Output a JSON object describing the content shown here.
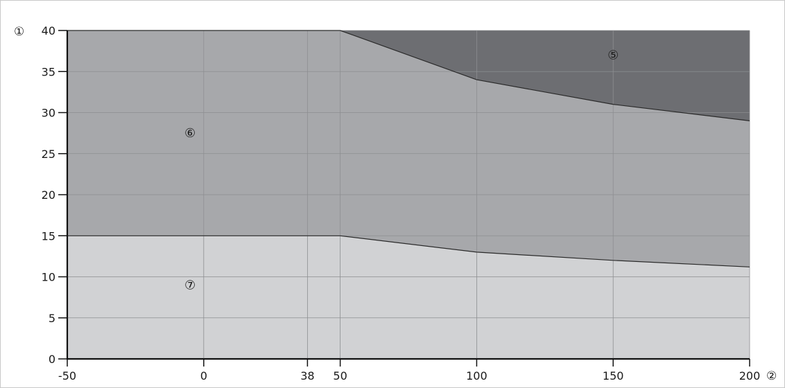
{
  "chart_data": {
    "type": "area",
    "title": "",
    "xlabel": "②",
    "ylabel": "①",
    "xlim": [
      -50,
      200
    ],
    "ylim": [
      0,
      40
    ],
    "x_ticks": [
      -50,
      0,
      38,
      50,
      100,
      150,
      200
    ],
    "y_ticks": [
      0,
      5,
      10,
      15,
      20,
      25,
      30,
      35,
      40
    ],
    "grid": true,
    "legend": "none",
    "boundaries": [
      {
        "name": "upper",
        "points": [
          [
            -50,
            40
          ],
          [
            50,
            40
          ],
          [
            100,
            34
          ],
          [
            150,
            31
          ],
          [
            200,
            29
          ]
        ]
      },
      {
        "name": "lower",
        "points": [
          [
            -50,
            15
          ],
          [
            50,
            15
          ],
          [
            100,
            13
          ],
          [
            150,
            12
          ],
          [
            200,
            11.2
          ]
        ]
      }
    ],
    "regions": [
      {
        "label": "⑤",
        "color": "#6d6e72",
        "label_pos": [
          150,
          37
        ]
      },
      {
        "label": "⑥",
        "color": "#a7a8ab",
        "label_pos": [
          -5,
          27.5
        ]
      },
      {
        "label": "⑦",
        "color": "#d1d2d4",
        "label_pos": [
          -5,
          9
        ]
      }
    ]
  }
}
